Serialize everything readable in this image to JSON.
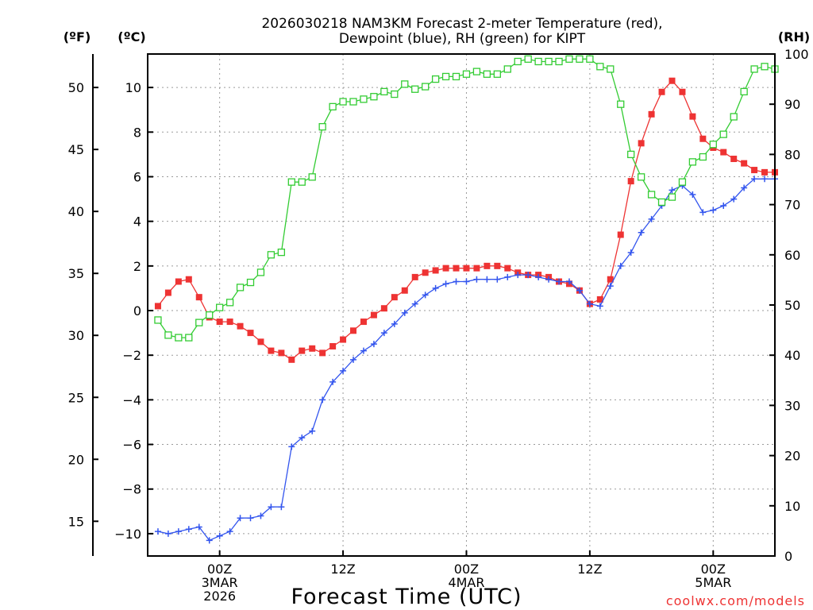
{
  "chart_data": {
    "type": "line",
    "title": [
      "2026030218 NAM3KM Forecast 2-meter Temperature (red),",
      "Dewpoint (blue), RH (green) for KIPT"
    ],
    "xlabel": "Forecast Time (UTC)",
    "credit": "coolwx.com/models",
    "x_range": [
      -7,
      54
    ],
    "x_ticks": [
      {
        "x": 0,
        "lines": [
          "00Z",
          "3MAR",
          "2026"
        ]
      },
      {
        "x": 12,
        "lines": [
          "12Z"
        ]
      },
      {
        "x": 24,
        "lines": [
          "00Z",
          "4MAR"
        ]
      },
      {
        "x": 36,
        "lines": [
          "12Z"
        ]
      },
      {
        "x": 48,
        "lines": [
          "00Z",
          "5MAR"
        ]
      }
    ],
    "axes": {
      "fahrenheit": {
        "unit": "(ºF)",
        "ticks": [
          "15",
          "20",
          "25",
          "30",
          "35",
          "40",
          "45",
          "50"
        ],
        "tick_values": [
          15,
          20,
          25,
          30,
          35,
          40,
          45,
          50
        ]
      },
      "celsius": {
        "unit": "(ºC)",
        "ylim": [
          -11,
          11.5
        ],
        "ticks": [
          "−10",
          "−8",
          "−6",
          "−4",
          "−2",
          "0",
          "2",
          "4",
          "6",
          "8",
          "10"
        ],
        "tick_values": [
          -10,
          -8,
          -6,
          -4,
          -2,
          0,
          2,
          4,
          6,
          8,
          10
        ]
      },
      "rh": {
        "unit": "(RH)",
        "ylim": [
          0,
          100
        ],
        "ticks": [
          "0",
          "10",
          "20",
          "30",
          "40",
          "50",
          "60",
          "70",
          "80",
          "90",
          "100"
        ],
        "tick_values": [
          0,
          10,
          20,
          30,
          40,
          50,
          60,
          70,
          80,
          90,
          100
        ]
      }
    },
    "x": [
      -6,
      -5,
      -4,
      -3,
      -2,
      -1,
      0,
      1,
      2,
      3,
      4,
      5,
      6,
      7,
      8,
      9,
      10,
      11,
      12,
      13,
      14,
      15,
      16,
      17,
      18,
      19,
      20,
      21,
      22,
      23,
      24,
      25,
      26,
      27,
      28,
      29,
      30,
      31,
      32,
      33,
      34,
      35,
      36,
      37,
      38,
      39,
      40,
      41,
      42,
      43,
      44,
      45,
      46,
      47,
      48,
      49,
      50,
      51,
      52,
      53,
      54
    ],
    "series": [
      {
        "name": "Temperature",
        "unit": "C",
        "color": "#ee3333",
        "marker": "square-filled",
        "values": [
          0.2,
          0.8,
          1.3,
          1.4,
          0.6,
          -0.3,
          -0.5,
          -0.5,
          -0.7,
          -1.0,
          -1.4,
          -1.8,
          -1.9,
          -2.2,
          -1.8,
          -1.7,
          -1.9,
          -1.6,
          -1.3,
          -0.9,
          -0.5,
          -0.2,
          0.1,
          0.6,
          0.9,
          1.5,
          1.7,
          1.8,
          1.9,
          1.9,
          1.9,
          1.9,
          2.0,
          2.0,
          1.9,
          1.7,
          1.6,
          1.6,
          1.5,
          1.3,
          1.2,
          0.9,
          0.3,
          0.5,
          1.4,
          3.4,
          5.8,
          7.5,
          8.8,
          9.8,
          10.3,
          9.8,
          8.7,
          7.7,
          7.3,
          7.1,
          6.8,
          6.6,
          6.3,
          6.2,
          6.2
        ]
      },
      {
        "name": "Dewpoint",
        "unit": "C",
        "color": "#3355ee",
        "marker": "plus",
        "values": [
          -9.9,
          -10.0,
          -9.9,
          -9.8,
          -9.7,
          -10.3,
          -10.1,
          -9.9,
          -9.3,
          -9.3,
          -9.2,
          -8.8,
          -8.8,
          -6.1,
          -5.7,
          -5.4,
          -4.0,
          -3.2,
          -2.7,
          -2.2,
          -1.8,
          -1.5,
          -1.0,
          -0.6,
          -0.1,
          0.3,
          0.7,
          1.0,
          1.2,
          1.3,
          1.3,
          1.4,
          1.4,
          1.4,
          1.5,
          1.6,
          1.6,
          1.5,
          1.4,
          1.3,
          1.3,
          0.9,
          0.3,
          0.2,
          1.1,
          2.0,
          2.6,
          3.5,
          4.1,
          4.7,
          5.4,
          5.6,
          5.2,
          4.4,
          4.5,
          4.7,
          5.0,
          5.5,
          5.9,
          5.9,
          5.9
        ]
      },
      {
        "name": "RH",
        "unit": "%",
        "color": "#33cc33",
        "marker": "square-open",
        "values": [
          47,
          44,
          43.5,
          43.5,
          46.5,
          48,
          49.5,
          50.5,
          53.5,
          54.5,
          56.5,
          60,
          60.5,
          74.5,
          74.5,
          75.5,
          85.5,
          89.5,
          90.5,
          90.5,
          91,
          91.5,
          92.5,
          92,
          94,
          93,
          93.5,
          95,
          95.5,
          95.5,
          96,
          96.5,
          96,
          96,
          97,
          98.5,
          99,
          98.5,
          98.5,
          98.5,
          99,
          99,
          99,
          97.5,
          97,
          90,
          80,
          75.5,
          72,
          70.5,
          71.5,
          74.5,
          78.5,
          79.5,
          82,
          84,
          87.5,
          92.5,
          97,
          97.5,
          97
        ]
      }
    ]
  }
}
